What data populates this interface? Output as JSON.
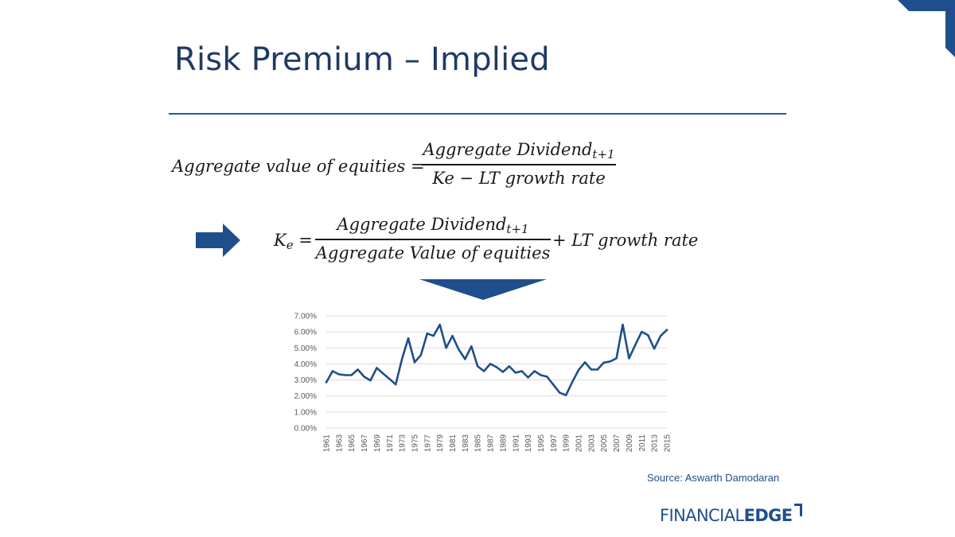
{
  "title": "Risk Premium – Implied",
  "equation1": {
    "lhs": "Aggregate value of equities =",
    "numerator": "Aggregate Dividend",
    "numerator_sub": "t+1",
    "denominator": "Ke − LT growth rate"
  },
  "equation2": {
    "ke": "K",
    "ke_sub": "e",
    "equals": "=",
    "numerator": "Aggregate Dividend",
    "numerator_sub": "t+1",
    "denominator": "Aggregate Value of equities",
    "rest": "+ LT growth rate"
  },
  "source": "Source: Aswarth Damodaran",
  "logo": {
    "part1": "FINANCIAL",
    "part2": "EDGE"
  },
  "colors": {
    "brand": "#1f4e8c",
    "accent": "#1f5aa6",
    "line": "#1f4e8c"
  },
  "icons": [
    "arrow-right-icon",
    "arrow-down-icon"
  ],
  "chart_data": {
    "type": "line",
    "title": "",
    "xlabel": "",
    "ylabel": "",
    "ylim": [
      0,
      7
    ],
    "yticks": [
      "0.00%",
      "1.00%",
      "2.00%",
      "3.00%",
      "4.00%",
      "5.00%",
      "6.00%",
      "7.00%"
    ],
    "grid": true,
    "xtick_labels": [
      "1961",
      "1963",
      "1965",
      "1967",
      "1969",
      "1971",
      "1973",
      "1975",
      "1977",
      "1979",
      "1981",
      "1983",
      "1985",
      "1987",
      "1989",
      "1991",
      "1993",
      "1995",
      "1997",
      "1999",
      "2001",
      "2003",
      "2005",
      "2007",
      "2009",
      "2011",
      "2013",
      "2015"
    ],
    "x": [
      1961,
      1962,
      1963,
      1964,
      1965,
      1966,
      1967,
      1968,
      1969,
      1970,
      1971,
      1972,
      1973,
      1974,
      1975,
      1976,
      1977,
      1978,
      1979,
      1980,
      1981,
      1982,
      1983,
      1984,
      1985,
      1986,
      1987,
      1988,
      1989,
      1990,
      1991,
      1992,
      1993,
      1994,
      1995,
      1996,
      1997,
      1998,
      1999,
      2000,
      2001,
      2002,
      2003,
      2004,
      2005,
      2006,
      2007,
      2008,
      2009,
      2010,
      2011,
      2012,
      2013,
      2014,
      2015
    ],
    "series": [
      {
        "values": [
          2.85,
          3.55,
          3.35,
          3.3,
          3.3,
          3.65,
          3.2,
          2.97,
          3.75,
          3.4,
          3.07,
          2.72,
          4.3,
          5.6,
          4.1,
          4.55,
          5.9,
          5.75,
          6.45,
          5.0,
          5.75,
          4.9,
          4.3,
          5.1,
          3.85,
          3.55,
          4.0,
          3.8,
          3.5,
          3.85,
          3.45,
          3.55,
          3.15,
          3.55,
          3.3,
          3.2,
          2.7,
          2.2,
          2.05,
          2.87,
          3.62,
          4.1,
          3.65,
          3.65,
          4.08,
          4.15,
          4.35,
          6.45,
          4.35,
          5.2,
          6.0,
          5.8,
          4.95,
          5.75,
          6.12
        ]
      }
    ]
  }
}
